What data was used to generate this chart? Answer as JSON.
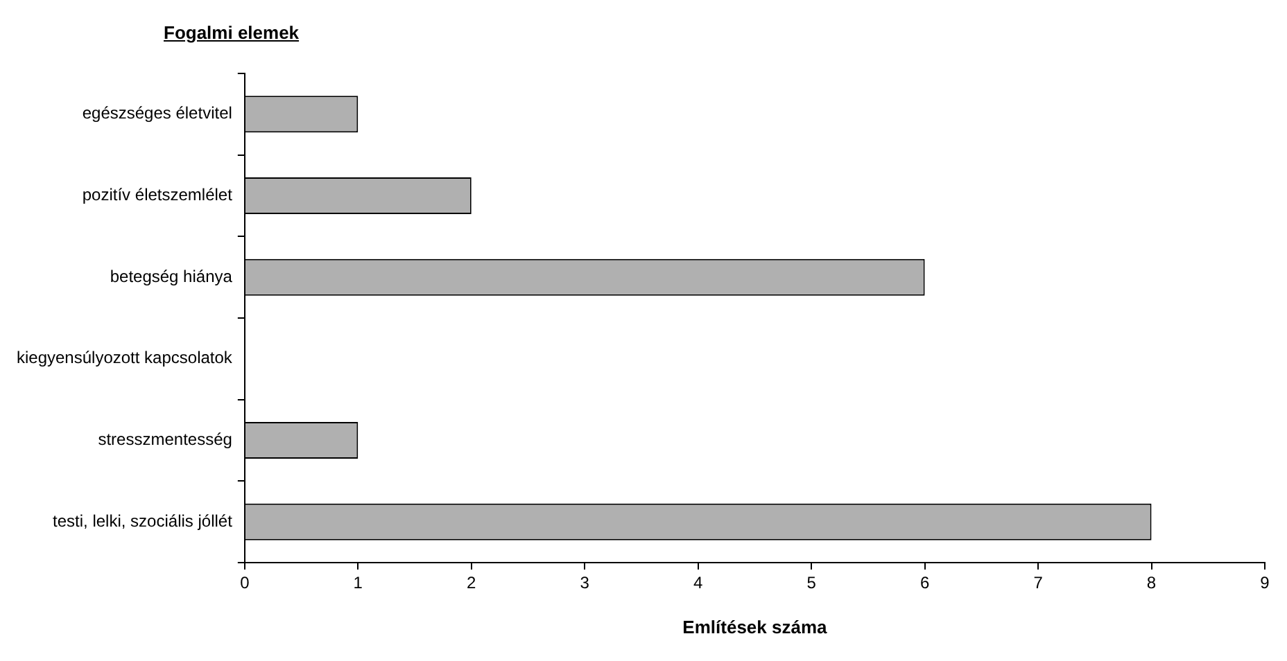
{
  "chart_data": {
    "type": "bar",
    "orientation": "horizontal",
    "ylabel": "Fogalmi elemek",
    "xlabel": "Említések száma",
    "categories": [
      "egészséges életvitel",
      "pozitív életszemlélet",
      "betegség hiánya",
      "kiegyensúlyozott kapcsolatok",
      "stresszmentesség",
      "testi, lelki, szociális jóllét"
    ],
    "values": [
      1,
      2,
      6,
      0,
      1,
      8
    ],
    "color": "#b0b0b0",
    "xlim": [
      0,
      9
    ],
    "xticks": [
      0,
      1,
      2,
      3,
      4,
      5,
      6,
      7,
      8,
      9
    ],
    "grid": false,
    "legend": false
  }
}
